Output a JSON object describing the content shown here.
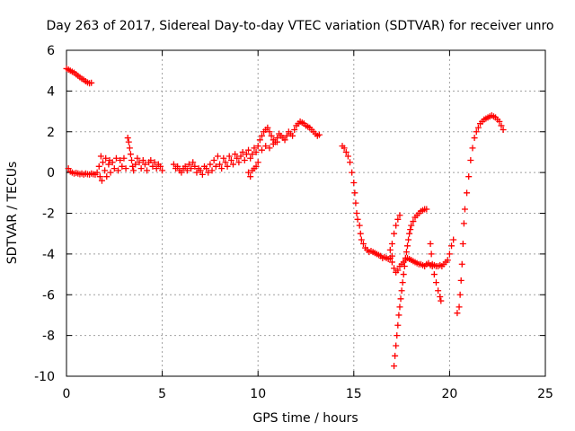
{
  "chart_data": {
    "type": "scatter",
    "title": "Day 263 of 2017, Sidereal Day-to-day VTEC variation (SDTVAR) for receiver unro",
    "xlabel": "GPS time / hours",
    "ylabel": "SDTVAR / TECUs",
    "xlim": [
      0,
      25
    ],
    "ylim": [
      -10,
      6
    ],
    "x_ticks": [
      0,
      5,
      10,
      15,
      20,
      25
    ],
    "y_ticks": [
      -10,
      -8,
      -6,
      -4,
      -2,
      0,
      2,
      4,
      6
    ],
    "x_tick_labels": [
      "0",
      "5",
      "10",
      "15",
      "20",
      "25"
    ],
    "y_tick_labels": [
      "-10",
      "-8",
      "-6",
      "-4",
      "-2",
      "0",
      "2",
      "4",
      "6"
    ],
    "grid": true,
    "marker": "+",
    "color": "#ff0000",
    "series": [
      {
        "points": [
          [
            0.0,
            5.1
          ],
          [
            0.1,
            5.05
          ],
          [
            0.2,
            5.0
          ],
          [
            0.3,
            4.95
          ],
          [
            0.4,
            4.9
          ],
          [
            0.5,
            4.82
          ],
          [
            0.6,
            4.75
          ],
          [
            0.7,
            4.68
          ],
          [
            0.8,
            4.6
          ],
          [
            0.9,
            4.55
          ],
          [
            1.0,
            4.48
          ],
          [
            1.1,
            4.42
          ],
          [
            1.2,
            4.38
          ],
          [
            1.3,
            4.4
          ],
          [
            0.1,
            0.2
          ],
          [
            0.2,
            0.05
          ],
          [
            0.3,
            0.0
          ],
          [
            0.4,
            -0.05
          ],
          [
            0.5,
            -0.02
          ],
          [
            0.6,
            -0.05
          ],
          [
            0.7,
            -0.08
          ],
          [
            0.8,
            -0.05
          ],
          [
            0.9,
            -0.1
          ],
          [
            1.0,
            -0.05
          ],
          [
            1.1,
            -0.08
          ],
          [
            1.2,
            -0.1
          ],
          [
            1.3,
            -0.05
          ],
          [
            1.4,
            -0.08
          ],
          [
            1.5,
            -0.1
          ],
          [
            1.6,
            0.0
          ],
          [
            1.7,
            0.3
          ],
          [
            1.75,
            -0.2
          ],
          [
            1.8,
            0.8
          ],
          [
            1.85,
            -0.4
          ],
          [
            1.9,
            0.5
          ],
          [
            2.0,
            0.1
          ],
          [
            2.05,
            0.7
          ],
          [
            2.1,
            -0.2
          ],
          [
            2.2,
            0.4
          ],
          [
            2.25,
            0.6
          ],
          [
            2.3,
            0.0
          ],
          [
            2.4,
            0.5
          ],
          [
            2.5,
            0.2
          ],
          [
            2.6,
            0.7
          ],
          [
            2.7,
            0.1
          ],
          [
            2.8,
            0.6
          ],
          [
            2.9,
            0.3
          ],
          [
            3.0,
            0.7
          ],
          [
            3.1,
            0.2
          ],
          [
            3.2,
            1.7
          ],
          [
            3.25,
            1.5
          ],
          [
            3.3,
            1.2
          ],
          [
            3.35,
            0.9
          ],
          [
            3.4,
            0.6
          ],
          [
            3.45,
            0.3
          ],
          [
            3.5,
            0.1
          ],
          [
            3.6,
            0.4
          ],
          [
            3.7,
            0.7
          ],
          [
            3.8,
            0.5
          ],
          [
            3.9,
            0.2
          ],
          [
            4.0,
            0.6
          ],
          [
            4.1,
            0.4
          ],
          [
            4.2,
            0.1
          ],
          [
            4.3,
            0.5
          ],
          [
            4.4,
            0.6
          ],
          [
            4.5,
            0.3
          ],
          [
            4.6,
            0.5
          ],
          [
            4.7,
            0.2
          ],
          [
            4.8,
            0.4
          ],
          [
            4.9,
            0.3
          ],
          [
            5.0,
            0.1
          ],
          [
            5.6,
            0.4
          ],
          [
            5.7,
            0.2
          ],
          [
            5.8,
            0.3
          ],
          [
            5.9,
            0.1
          ],
          [
            6.0,
            0.0
          ],
          [
            6.1,
            0.2
          ],
          [
            6.2,
            0.3
          ],
          [
            6.3,
            0.1
          ],
          [
            6.4,
            0.4
          ],
          [
            6.5,
            0.2
          ],
          [
            6.6,
            0.5
          ],
          [
            6.7,
            0.3
          ],
          [
            6.8,
            0.0
          ],
          [
            6.9,
            0.2
          ],
          [
            7.0,
            0.1
          ],
          [
            7.1,
            -0.1
          ],
          [
            7.2,
            0.3
          ],
          [
            7.3,
            0.2
          ],
          [
            7.4,
            0.0
          ],
          [
            7.5,
            0.4
          ],
          [
            7.6,
            0.1
          ],
          [
            7.7,
            0.6
          ],
          [
            7.8,
            0.3
          ],
          [
            7.9,
            0.8
          ],
          [
            8.0,
            0.4
          ],
          [
            8.1,
            0.2
          ],
          [
            8.2,
            0.7
          ],
          [
            8.3,
            0.5
          ],
          [
            8.4,
            0.3
          ],
          [
            8.5,
            0.8
          ],
          [
            8.6,
            0.6
          ],
          [
            8.7,
            0.4
          ],
          [
            8.8,
            0.9
          ],
          [
            8.9,
            0.7
          ],
          [
            9.0,
            0.5
          ],
          [
            9.1,
            0.8
          ],
          [
            9.2,
            1.0
          ],
          [
            9.3,
            0.6
          ],
          [
            9.4,
            0.9
          ],
          [
            9.5,
            1.1
          ],
          [
            9.6,
            0.7
          ],
          [
            9.7,
            0.9
          ],
          [
            9.8,
            1.2
          ],
          [
            9.9,
            1.0
          ],
          [
            10.0,
            1.3
          ],
          [
            9.5,
            0.0
          ],
          [
            9.6,
            -0.2
          ],
          [
            9.7,
            0.1
          ],
          [
            9.8,
            0.2
          ],
          [
            9.9,
            0.3
          ],
          [
            10.0,
            0.5
          ],
          [
            10.1,
            1.6
          ],
          [
            10.2,
            1.8
          ],
          [
            10.3,
            2.0
          ],
          [
            10.4,
            2.1
          ],
          [
            10.5,
            2.2
          ],
          [
            10.6,
            2.0
          ],
          [
            10.7,
            1.8
          ],
          [
            10.8,
            1.6
          ],
          [
            10.9,
            1.5
          ],
          [
            11.0,
            1.7
          ],
          [
            11.1,
            1.9
          ],
          [
            11.2,
            1.8
          ],
          [
            11.3,
            1.7
          ],
          [
            11.4,
            1.6
          ],
          [
            11.5,
            1.8
          ],
          [
            11.6,
            2.0
          ],
          [
            11.7,
            1.9
          ],
          [
            11.8,
            1.8
          ],
          [
            10.2,
            1.1
          ],
          [
            10.4,
            1.3
          ],
          [
            10.6,
            1.2
          ],
          [
            10.8,
            1.4
          ],
          [
            11.0,
            1.5
          ],
          [
            11.9,
            2.1
          ],
          [
            12.0,
            2.3
          ],
          [
            12.1,
            2.4
          ],
          [
            12.2,
            2.5
          ],
          [
            12.3,
            2.45
          ],
          [
            12.4,
            2.4
          ],
          [
            12.5,
            2.3
          ],
          [
            12.6,
            2.25
          ],
          [
            12.7,
            2.2
          ],
          [
            12.8,
            2.1
          ],
          [
            12.9,
            2.0
          ],
          [
            13.0,
            1.9
          ],
          [
            13.1,
            1.8
          ],
          [
            13.2,
            1.85
          ],
          [
            14.4,
            1.3
          ],
          [
            14.5,
            1.2
          ],
          [
            14.6,
            1.0
          ],
          [
            14.7,
            0.8
          ],
          [
            14.8,
            0.5
          ],
          [
            14.9,
            0.0
          ],
          [
            15.0,
            -0.5
          ],
          [
            15.05,
            -1.0
          ],
          [
            15.1,
            -1.5
          ],
          [
            15.15,
            -2.0
          ],
          [
            15.2,
            -2.3
          ],
          [
            15.3,
            -2.6
          ],
          [
            15.35,
            -3.0
          ],
          [
            15.4,
            -3.3
          ],
          [
            15.5,
            -3.5
          ],
          [
            15.6,
            -3.7
          ],
          [
            15.7,
            -3.8
          ],
          [
            15.8,
            -3.9
          ],
          [
            15.9,
            -3.85
          ],
          [
            16.0,
            -3.9
          ],
          [
            16.1,
            -3.95
          ],
          [
            16.2,
            -4.0
          ],
          [
            16.3,
            -4.05
          ],
          [
            16.4,
            -4.1
          ],
          [
            16.5,
            -4.2
          ],
          [
            16.6,
            -4.15
          ],
          [
            16.7,
            -4.2
          ],
          [
            16.8,
            -4.25
          ],
          [
            16.9,
            -4.2
          ],
          [
            17.0,
            -4.1
          ],
          [
            17.0,
            -4.4
          ],
          [
            17.1,
            -4.7
          ],
          [
            17.2,
            -4.9
          ],
          [
            17.3,
            -4.8
          ],
          [
            17.4,
            -4.6
          ],
          [
            17.5,
            -4.5
          ],
          [
            17.6,
            -4.4
          ],
          [
            17.7,
            -4.3
          ],
          [
            17.8,
            -4.2
          ],
          [
            17.9,
            -4.25
          ],
          [
            18.0,
            -4.3
          ],
          [
            18.1,
            -4.35
          ],
          [
            18.2,
            -4.4
          ],
          [
            18.3,
            -4.45
          ],
          [
            18.4,
            -4.5
          ],
          [
            18.5,
            -4.5
          ],
          [
            18.6,
            -4.55
          ],
          [
            18.7,
            -4.6
          ],
          [
            18.8,
            -4.5
          ],
          [
            18.9,
            -4.45
          ],
          [
            19.0,
            -4.55
          ],
          [
            19.1,
            -4.6
          ],
          [
            19.2,
            -4.55
          ],
          [
            19.3,
            -4.6
          ],
          [
            19.4,
            -4.6
          ],
          [
            19.5,
            -4.55
          ],
          [
            19.6,
            -4.6
          ],
          [
            19.7,
            -4.5
          ],
          [
            19.8,
            -4.4
          ],
          [
            19.9,
            -4.3
          ],
          [
            20.0,
            -4.0
          ],
          [
            20.1,
            -3.6
          ],
          [
            20.2,
            -3.3
          ],
          [
            17.1,
            -9.5
          ],
          [
            17.15,
            -9.0
          ],
          [
            17.2,
            -8.5
          ],
          [
            17.25,
            -8.0
          ],
          [
            17.3,
            -7.5
          ],
          [
            17.35,
            -7.0
          ],
          [
            17.4,
            -6.6
          ],
          [
            17.45,
            -6.2
          ],
          [
            17.5,
            -5.8
          ],
          [
            17.55,
            -5.4
          ],
          [
            17.6,
            -5.0
          ],
          [
            17.65,
            -4.6
          ],
          [
            17.7,
            -4.2
          ],
          [
            17.75,
            -3.9
          ],
          [
            17.8,
            -3.6
          ],
          [
            17.85,
            -3.3
          ],
          [
            17.9,
            -3.0
          ],
          [
            17.95,
            -2.8
          ],
          [
            18.0,
            -2.6
          ],
          [
            18.1,
            -2.4
          ],
          [
            18.2,
            -2.2
          ],
          [
            18.3,
            -2.1
          ],
          [
            18.4,
            -2.0
          ],
          [
            18.5,
            -1.9
          ],
          [
            18.6,
            -1.85
          ],
          [
            18.7,
            -1.8
          ],
          [
            18.8,
            -1.8
          ],
          [
            16.9,
            -3.8
          ],
          [
            17.0,
            -3.5
          ],
          [
            17.1,
            -3.0
          ],
          [
            17.2,
            -2.6
          ],
          [
            17.3,
            -2.3
          ],
          [
            17.4,
            -2.1
          ],
          [
            19.0,
            -3.5
          ],
          [
            19.05,
            -4.0
          ],
          [
            19.1,
            -4.5
          ],
          [
            19.2,
            -5.0
          ],
          [
            19.3,
            -5.4
          ],
          [
            19.4,
            -5.8
          ],
          [
            19.5,
            -6.1
          ],
          [
            19.55,
            -6.3
          ],
          [
            20.4,
            -6.9
          ],
          [
            20.5,
            -6.6
          ],
          [
            20.55,
            -6.0
          ],
          [
            20.6,
            -5.3
          ],
          [
            20.65,
            -4.5
          ],
          [
            20.7,
            -3.5
          ],
          [
            20.75,
            -2.5
          ],
          [
            20.8,
            -1.8
          ],
          [
            20.9,
            -1.0
          ],
          [
            21.0,
            -0.2
          ],
          [
            21.1,
            0.6
          ],
          [
            21.2,
            1.2
          ],
          [
            21.3,
            1.7
          ],
          [
            21.4,
            2.0
          ],
          [
            21.5,
            2.2
          ],
          [
            21.6,
            2.4
          ],
          [
            21.7,
            2.5
          ],
          [
            21.8,
            2.6
          ],
          [
            21.9,
            2.65
          ],
          [
            22.0,
            2.7
          ],
          [
            22.1,
            2.75
          ],
          [
            22.2,
            2.8
          ],
          [
            22.3,
            2.75
          ],
          [
            22.4,
            2.7
          ],
          [
            22.5,
            2.6
          ],
          [
            22.6,
            2.5
          ],
          [
            22.7,
            2.3
          ],
          [
            22.8,
            2.1
          ]
        ]
      }
    ]
  }
}
